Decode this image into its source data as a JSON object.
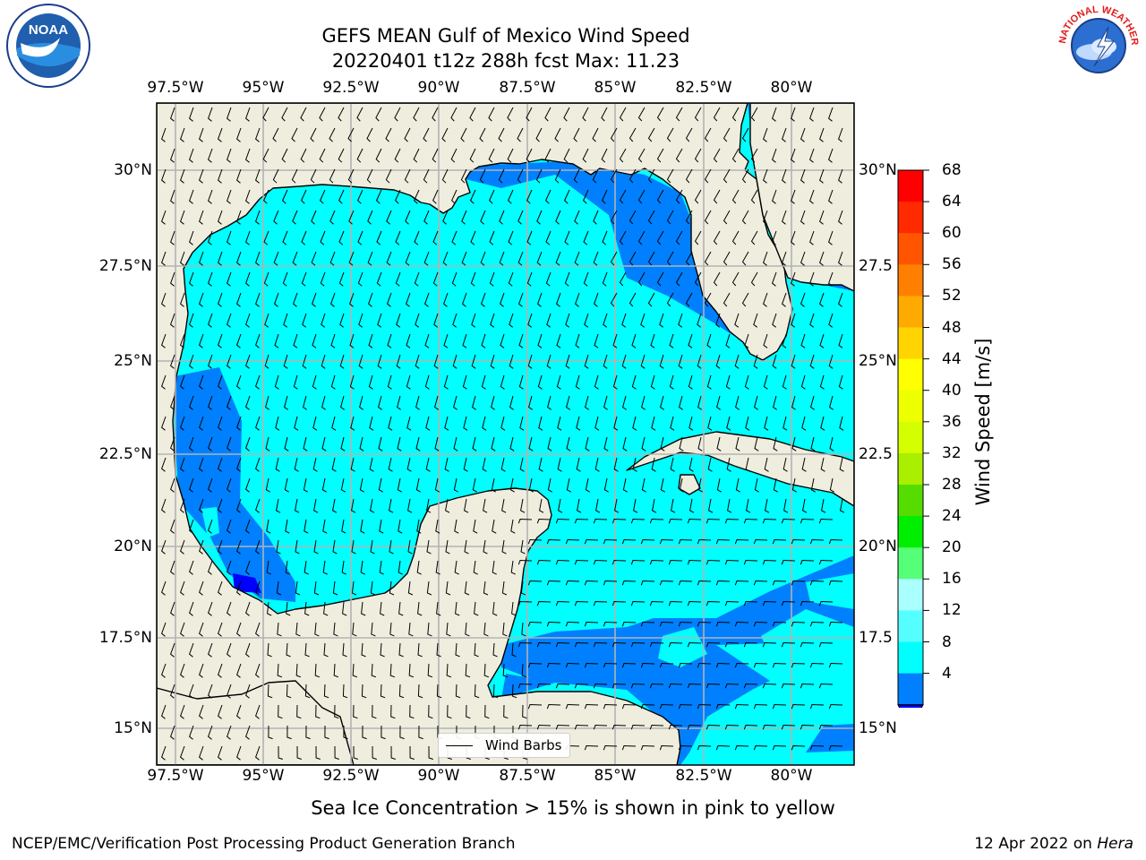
{
  "title_line1": "GEFS MEAN Gulf of Mexico Wind Speed",
  "title_line2": "20220401 t12z 288h fcst   Max: 11.23",
  "lon_ticks": [
    "97.5°W",
    "95°W",
    "92.5°W",
    "90°W",
    "87.5°W",
    "85°W",
    "82.5°W",
    "80°W"
  ],
  "lat_ticks_left": [
    "30°N",
    "27.5°N",
    "25°N",
    "22.5°N",
    "20°N",
    "17.5°N",
    "15°N"
  ],
  "lat_ticks_right": [
    "30°N",
    "27.5",
    "25°N",
    "22.5",
    "20°N",
    "17.5",
    "15°N"
  ],
  "colorbar": {
    "label": "Wind Speed [m/s]",
    "ticks": [
      "68",
      "64",
      "60",
      "56",
      "52",
      "48",
      "44",
      "40",
      "36",
      "32",
      "28",
      "24",
      "20",
      "16",
      "12",
      "8",
      "4"
    ],
    "colors": [
      "#ff0000",
      "#ff2a00",
      "#ff5500",
      "#ff8000",
      "#ffaa00",
      "#ffd400",
      "#ffff00",
      "#eeff00",
      "#d4ff00",
      "#aaee00",
      "#55dd00",
      "#00ee00",
      "#55ff77",
      "#aaffff",
      "#55ffff",
      "#00ffff",
      "#0080ff"
    ],
    "under_color": "#0000ff"
  },
  "legend": {
    "label": "Wind Barbs"
  },
  "sea_ice_note": "Sea Ice Concentration > 15% is shown in pink to yellow",
  "footer_left": "NCEP/EMC/Verification Post Processing Product Generation Branch",
  "footer_right_prefix": "12 Apr 2022 on ",
  "footer_right_host": "Hera",
  "logos": {
    "noaa_text": "NOAA",
    "nws_text": "NATIONAL WEATHER SERVICE"
  },
  "colors": {
    "land": "#efedde",
    "grid": "#b3b3b3",
    "coast": "#000000"
  }
}
